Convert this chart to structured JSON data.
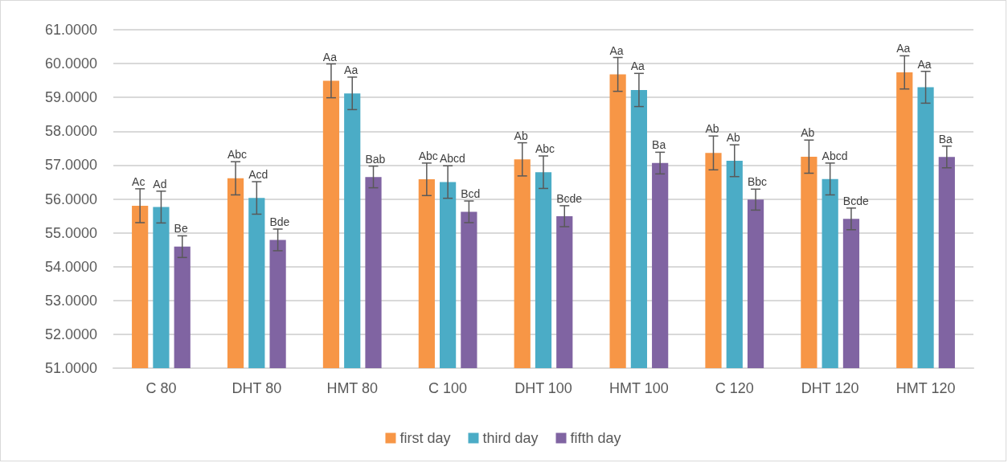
{
  "chart_data": {
    "type": "bar",
    "categories": [
      "C 80",
      "DHT 80",
      "HMT 80",
      "C 100",
      "DHT 100",
      "HMT 100",
      "C 120",
      "DHT 120",
      "HMT 120"
    ],
    "series": [
      {
        "name": "first day",
        "color": "#f79646",
        "values": [
          55.8,
          56.61,
          59.49,
          56.58,
          57.17,
          59.68,
          57.36,
          57.25,
          59.74
        ],
        "errors": [
          0.5,
          0.49,
          0.5,
          0.48,
          0.49,
          0.5,
          0.5,
          0.49,
          0.49
        ],
        "value_labels": [
          "Ac",
          "Abc",
          "Aa",
          "Abc",
          "Ab",
          "Aa",
          "Ab",
          "Ab",
          "Aa"
        ]
      },
      {
        "name": "third day",
        "color": "#4bacc6",
        "values": [
          55.76,
          56.03,
          59.12,
          56.5,
          56.79,
          59.22,
          57.13,
          56.59,
          59.3
        ],
        "errors": [
          0.47,
          0.48,
          0.48,
          0.48,
          0.48,
          0.49,
          0.47,
          0.47,
          0.47
        ],
        "value_labels": [
          "Ad",
          "Acd",
          "Aa",
          "Abcd",
          "Abc",
          "Aa",
          "Ab",
          "Abcd",
          "Aa"
        ]
      },
      {
        "name": "fifth day",
        "color": "#8064a2",
        "values": [
          54.59,
          54.79,
          56.65,
          55.62,
          55.49,
          57.06,
          55.98,
          55.41,
          57.24
        ],
        "errors": [
          0.32,
          0.32,
          0.32,
          0.32,
          0.31,
          0.32,
          0.31,
          0.32,
          0.32
        ],
        "value_labels": [
          "Be",
          "Bde",
          "Bab",
          "Bcd",
          "Bcde",
          "Ba",
          "Bbc",
          "Bcde",
          "Ba"
        ]
      }
    ],
    "ylim": [
      51,
      61
    ],
    "yticks": [
      {
        "value": 51,
        "label": "51.0000"
      },
      {
        "value": 52,
        "label": "52.0000"
      },
      {
        "value": 53,
        "label": "53.0000"
      },
      {
        "value": 54,
        "label": "54.0000"
      },
      {
        "value": 55,
        "label": "55.0000"
      },
      {
        "value": 56,
        "label": "56.0000"
      },
      {
        "value": 57,
        "label": "57.0000"
      },
      {
        "value": 58,
        "label": "58.0000"
      },
      {
        "value": 59,
        "label": "59.0000"
      },
      {
        "value": 60,
        "label": "60.0000"
      },
      {
        "value": 61,
        "label": "61.0000"
      }
    ],
    "grid": "y",
    "legend": "bottom"
  }
}
